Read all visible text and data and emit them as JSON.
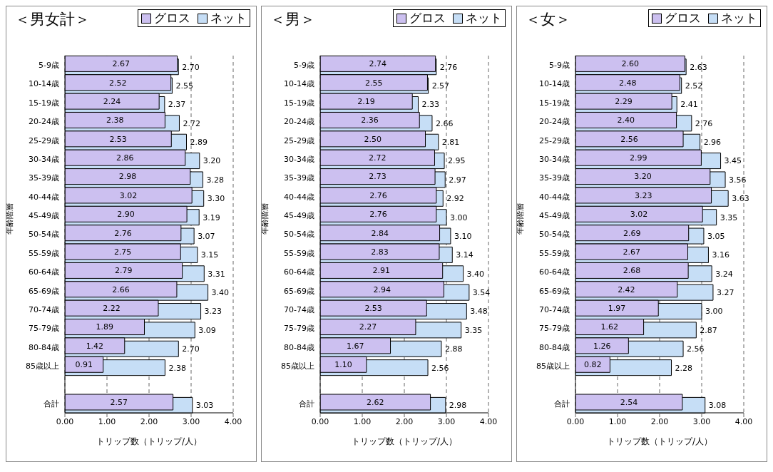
{
  "chart_data": [
    {
      "type": "bar",
      "orientation": "horizontal",
      "title": "＜男女計＞",
      "xlabel": "トリップ数（トリップ/人）",
      "ylabel": "年齢階層",
      "categories": [
        "5-9歳",
        "10-14歳",
        "15-19歳",
        "20-24歳",
        "25-29歳",
        "30-34歳",
        "35-39歳",
        "40-44歳",
        "45-49歳",
        "50-54歳",
        "55-59歳",
        "60-64歳",
        "65-69歳",
        "70-74歳",
        "75-79歳",
        "80-84歳",
        "85歳以上",
        null,
        "合計"
      ],
      "xlim": [
        0,
        4
      ],
      "xticks": [
        {
          "value": 0,
          "label": "0.00"
        },
        {
          "value": 1,
          "label": "1.00"
        },
        {
          "value": 2,
          "label": "2.00"
        },
        {
          "value": 3,
          "label": "3.00"
        },
        {
          "value": 4,
          "label": "4.00"
        }
      ],
      "grid": "x",
      "legend": "top right",
      "series": [
        {
          "name": "グロス",
          "color": "#ccc0f0",
          "values": [
            2.67,
            2.52,
            2.24,
            2.38,
            2.53,
            2.86,
            2.98,
            3.02,
            2.9,
            2.76,
            2.75,
            2.79,
            2.66,
            2.22,
            1.89,
            1.42,
            0.91,
            null,
            2.57
          ],
          "value_labels": [
            "2.67",
            "2.52",
            "2.24",
            "2.38",
            "2.53",
            "2.86",
            "2.98",
            "3.02",
            "2.90",
            "2.76",
            "2.75",
            "2.79",
            "2.66",
            "2.22",
            "1.89",
            "1.42",
            "0.91",
            null,
            "2.57"
          ]
        },
        {
          "name": "ネット",
          "color": "#c6def6",
          "values": [
            2.7,
            2.55,
            2.37,
            2.72,
            2.89,
            3.2,
            3.28,
            3.3,
            3.19,
            3.07,
            3.15,
            3.31,
            3.4,
            3.23,
            3.09,
            2.7,
            2.38,
            null,
            3.03
          ],
          "value_labels": [
            "2.70",
            "2.55",
            "2.37",
            "2.72",
            "2.89",
            "3.20",
            "3.28",
            "3.30",
            "3.19",
            "3.07",
            "3.15",
            "3.31",
            "3.40",
            "3.23",
            "3.09",
            "2.70",
            "2.38",
            null,
            "3.03"
          ]
        }
      ]
    },
    {
      "type": "bar",
      "orientation": "horizontal",
      "title": "＜男＞",
      "xlabel": "トリップ数（トリップ/人）",
      "ylabel": "年齢階層",
      "categories": [
        "5-9歳",
        "10-14歳",
        "15-19歳",
        "20-24歳",
        "25-29歳",
        "30-34歳",
        "35-39歳",
        "40-44歳",
        "45-49歳",
        "50-54歳",
        "55-59歳",
        "60-64歳",
        "65-69歳",
        "70-74歳",
        "75-79歳",
        "80-84歳",
        "85歳以上",
        null,
        "合計"
      ],
      "xlim": [
        0,
        4
      ],
      "xticks": [
        {
          "value": 0,
          "label": "0.00"
        },
        {
          "value": 1,
          "label": "1.00"
        },
        {
          "value": 2,
          "label": "2.00"
        },
        {
          "value": 3,
          "label": "3.00"
        },
        {
          "value": 4,
          "label": "4.00"
        }
      ],
      "grid": "x",
      "legend": "top right",
      "series": [
        {
          "name": "グロス",
          "color": "#ccc0f0",
          "values": [
            2.74,
            2.55,
            2.19,
            2.36,
            2.5,
            2.72,
            2.73,
            2.76,
            2.76,
            2.84,
            2.83,
            2.91,
            2.94,
            2.53,
            2.27,
            1.67,
            1.1,
            null,
            2.62
          ],
          "value_labels": [
            "2.74",
            "2.55",
            "2.19",
            "2.36",
            "2.50",
            "2.72",
            "2.73",
            "2.76",
            "2.76",
            "2.84",
            "2.83",
            "2.91",
            "2.94",
            "2.53",
            "2.27",
            "1.67",
            "1.10",
            null,
            "2.62"
          ]
        },
        {
          "name": "ネット",
          "color": "#c6def6",
          "values": [
            2.76,
            2.57,
            2.33,
            2.66,
            2.81,
            2.95,
            2.97,
            2.92,
            3.0,
            3.1,
            3.14,
            3.4,
            3.54,
            3.48,
            3.35,
            2.88,
            2.56,
            null,
            2.98
          ],
          "value_labels": [
            "2.76",
            "2.57",
            "2.33",
            "2.66",
            "2.81",
            "2.95",
            "2.97",
            "2.92",
            "3.00",
            "3.10",
            "3.14",
            "3.40",
            "3.54",
            "3.48",
            "3.35",
            "2.88",
            "2.56",
            null,
            "2.98"
          ]
        }
      ]
    },
    {
      "type": "bar",
      "orientation": "horizontal",
      "title": "＜女＞",
      "xlabel": "トリップ数（トリップ/人）",
      "ylabel": "年齢階層",
      "categories": [
        "5-9歳",
        "10-14歳",
        "15-19歳",
        "20-24歳",
        "25-29歳",
        "30-34歳",
        "35-39歳",
        "40-44歳",
        "45-49歳",
        "50-54歳",
        "55-59歳",
        "60-64歳",
        "65-69歳",
        "70-74歳",
        "75-79歳",
        "80-84歳",
        "85歳以上",
        null,
        "合計"
      ],
      "xlim": [
        0,
        4
      ],
      "xticks": [
        {
          "value": 0,
          "label": "0.00"
        },
        {
          "value": 1,
          "label": "1.00"
        },
        {
          "value": 2,
          "label": "2.00"
        },
        {
          "value": 3,
          "label": "3.00"
        },
        {
          "value": 4,
          "label": "4.00"
        }
      ],
      "grid": "x",
      "legend": "top right",
      "series": [
        {
          "name": "グロス",
          "color": "#ccc0f0",
          "values": [
            2.6,
            2.48,
            2.29,
            2.4,
            2.56,
            2.99,
            3.2,
            3.23,
            3.02,
            2.69,
            2.67,
            2.68,
            2.42,
            1.97,
            1.62,
            1.26,
            0.82,
            null,
            2.54
          ],
          "value_labels": [
            "2.60",
            "2.48",
            "2.29",
            "2.40",
            "2.56",
            "2.99",
            "3.20",
            "3.23",
            "3.02",
            "2.69",
            "2.67",
            "2.68",
            "2.42",
            "1.97",
            "1.62",
            "1.26",
            "0.82",
            null,
            "2.54"
          ]
        },
        {
          "name": "ネット",
          "color": "#c6def6",
          "values": [
            2.63,
            2.52,
            2.41,
            2.76,
            2.96,
            3.45,
            3.56,
            3.63,
            3.35,
            3.05,
            3.16,
            3.24,
            3.27,
            3.0,
            2.87,
            2.56,
            2.28,
            null,
            3.08
          ],
          "value_labels": [
            "2.63",
            "2.52",
            "2.41",
            "2.76",
            "2.96",
            "3.45",
            "3.56",
            "3.63",
            "3.35",
            "3.05",
            "3.16",
            "3.24",
            "3.27",
            "3.00",
            "2.87",
            "2.56",
            "2.28",
            null,
            "3.08"
          ]
        }
      ]
    }
  ]
}
